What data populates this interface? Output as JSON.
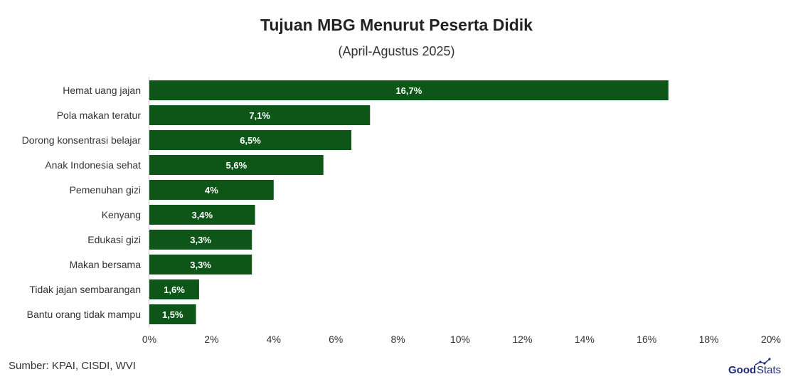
{
  "chart_data": {
    "type": "bar",
    "orientation": "horizontal",
    "title": "Tujuan MBG Menurut Peserta Didik",
    "subtitle": "(April-Agustus 2025)",
    "categories": [
      "Hemat uang jajan",
      "Pola makan teratur",
      "Dorong konsentrasi belajar",
      "Anak Indonesia sehat",
      "Pemenuhan gizi",
      "Kenyang",
      "Edukasi gizi",
      "Makan bersama",
      "Tidak jajan sembarangan",
      "Bantu orang tidak mampu"
    ],
    "values": [
      16.7,
      7.1,
      6.5,
      5.6,
      4,
      3.4,
      3.3,
      3.3,
      1.6,
      1.5
    ],
    "data_labels": [
      "16,7%",
      "7,1%",
      "6,5%",
      "5,6%",
      "4%",
      "3,4%",
      "3,3%",
      "3,3%",
      "1,6%",
      "1,5%"
    ],
    "xlim": [
      0,
      20
    ],
    "x_ticks": [
      "0%",
      "2%",
      "4%",
      "6%",
      "8%",
      "10%",
      "12%",
      "14%",
      "16%",
      "18%",
      "20%"
    ],
    "bar_color": "#0d5618",
    "grid": false,
    "legend": "none"
  },
  "source": "Sumber: KPAI, CISDI, WVI",
  "brand": {
    "logo_text_bold": "Good",
    "logo_text_light": "Stats",
    "color": "#1f2a7a"
  }
}
